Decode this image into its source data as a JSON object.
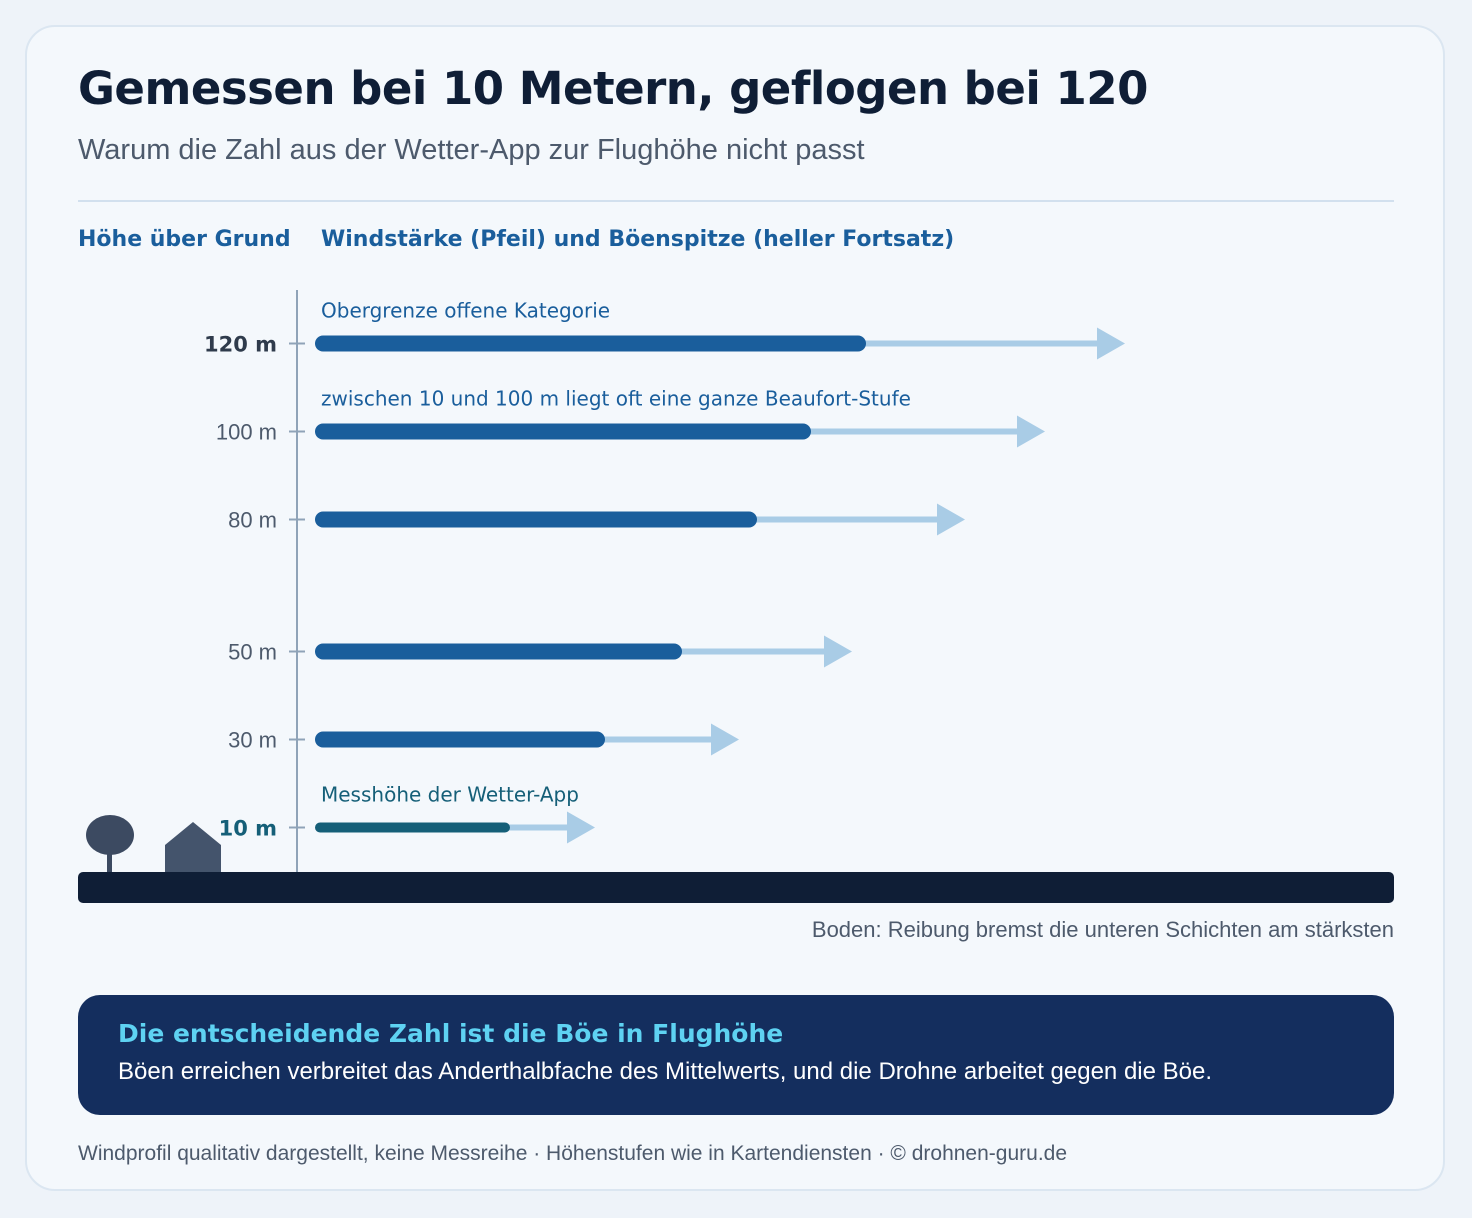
{
  "header": {
    "title": "Gemessen bei 10 Metern, geflogen bei 120",
    "subtitle": "Warum die Zahl aus der Wetter-App zur Flughöhe nicht passt"
  },
  "columns": {
    "height_label": "Höhe über Grund",
    "wind_label": "Windstärke (Pfeil) und Böenspitze (heller Fortsatz)"
  },
  "chart_data": {
    "type": "bar",
    "title": "Gemessen bei 10 Metern, geflogen bei 120",
    "xlabel": "Windstärke (Pfeil) und Böenspitze (heller Fortsatz)",
    "ylabel": "Höhe über Grund",
    "value_scale": "qualitativ",
    "heights_m": [
      10,
      30,
      50,
      80,
      100,
      120
    ],
    "tick_labels": [
      "10 m",
      "30 m",
      "50 m",
      "80 m",
      "100 m",
      "120 m"
    ],
    "highlight_ticks": [
      "10 m",
      "120 m"
    ],
    "series": [
      {
        "name": "Windstärke (Pfeil)",
        "values": [
          195,
          290,
          367,
          442,
          496,
          551
        ]
      },
      {
        "name": "Böenspitze (heller Fortsatz)",
        "values": [
          282,
          426,
          539,
          652,
          732,
          812
        ]
      }
    ],
    "annotations": [
      {
        "height_m": 120,
        "text": "Obergrenze offene Kategorie"
      },
      {
        "height_m": 100,
        "text": "zwischen 10 und 100 m liegt oft eine ganze Beaufort-Stufe"
      },
      {
        "height_m": 10,
        "text": "Messhöhe der Wetter-App"
      }
    ],
    "ground_note": "Boden: Reibung bremst die unteren Schichten am stärksten"
  },
  "callout": {
    "title": "Die entscheidende Zahl ist die Böe in Flughöhe",
    "body": "Böen erreichen verbreitet das Anderthalbfache des Mittelwerts, und die Drohne arbeitet gegen die Böe."
  },
  "footer": "Windprofil qualitativ dargestellt, keine Messreihe · Höhenstufen wie in Kartendiensten · © drohnen-guru.de",
  "colors": {
    "bar": "#1a5e9c",
    "bar_low": "#155f78",
    "gust": "#a9cce6",
    "ground": "#0f1e36",
    "axis": "#8fa3b8",
    "callout_bg": "#142e5e",
    "callout_title": "#5ed2f2"
  },
  "icons": [
    "tree-icon",
    "house-icon"
  ]
}
